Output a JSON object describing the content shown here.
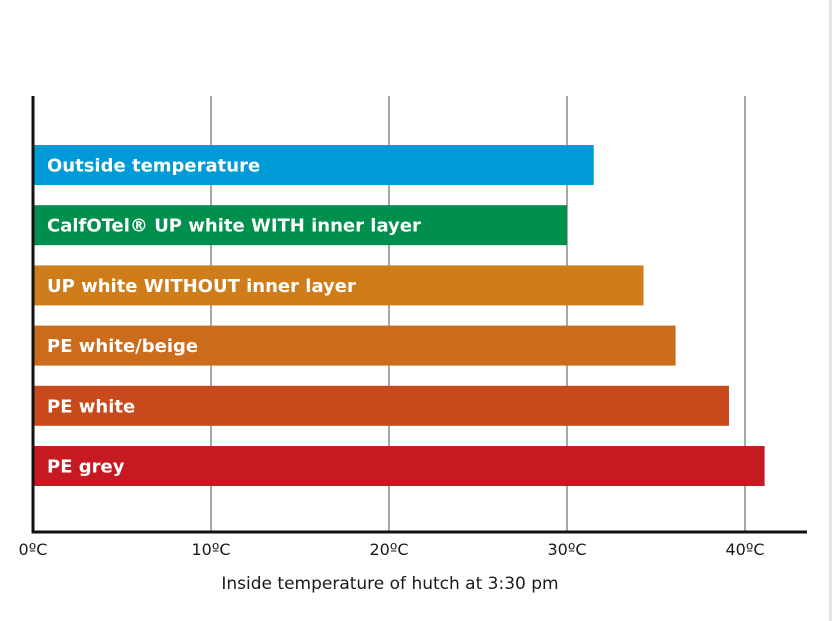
{
  "chart_data": {
    "type": "bar",
    "orientation": "horizontal",
    "title": "",
    "xlabel": "Inside temperature of hutch at 3:30 pm",
    "ylabel": "",
    "xlim": [
      0,
      43
    ],
    "grid": true,
    "legend": "none",
    "ticks": [
      {
        "value": 0,
        "label": "0ºC"
      },
      {
        "value": 10,
        "label": "10ºC"
      },
      {
        "value": 20,
        "label": "20ºC"
      },
      {
        "value": 30,
        "label": "30ºC"
      },
      {
        "value": 40,
        "label": "40ºC"
      }
    ],
    "categories": [
      "Outside temperature",
      "CalfOTel® UP white WITH inner layer",
      "UP white WITHOUT inner layer",
      "PE white/beige",
      "PE white",
      "PE grey"
    ],
    "values": [
      31.5,
      30.0,
      34.3,
      36.1,
      39.1,
      41.1
    ],
    "colors": [
      "#009ad6",
      "#008f4c",
      "#cf7d1a",
      "#cb6b1c",
      "#c64a1c",
      "#c51a22"
    ]
  }
}
